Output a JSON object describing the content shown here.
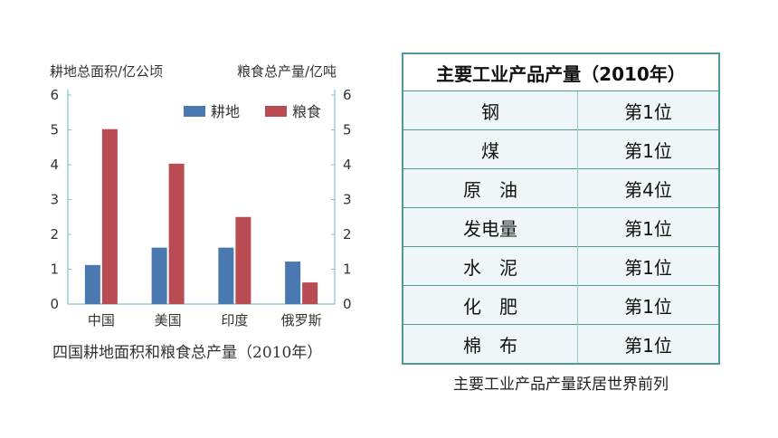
{
  "chart_data": {
    "type": "bar",
    "categories": [
      "中国",
      "美国",
      "印度",
      "俄罗斯"
    ],
    "series": [
      {
        "name": "耕地",
        "values": [
          1.12,
          1.62,
          1.62,
          1.22
        ],
        "color": "#4a78b0"
      },
      {
        "name": "粮食",
        "values": [
          5.02,
          4.03,
          2.5,
          0.62
        ],
        "color": "#b84c52"
      }
    ],
    "left_axis_label": "耕地总面积/亿公顷",
    "right_axis_label": "粮食总产量/亿吨",
    "ylim": [
      0,
      6
    ],
    "y2lim": [
      0,
      6
    ],
    "yticks": [
      "0",
      "1",
      "2",
      "3",
      "4",
      "5",
      "6"
    ],
    "legend_position": "top-right",
    "grid": false,
    "caption": "四国耕地面积和粮食总产量（2010年）",
    "axis_color": "#7fc4cc"
  },
  "table": {
    "title": "主要工业产品产量（2010年）",
    "rows": [
      {
        "name": "钢",
        "rank": "第1位"
      },
      {
        "name": "煤",
        "rank": "第1位"
      },
      {
        "name": "原　油",
        "rank": "第4位"
      },
      {
        "name": "发电量",
        "rank": "第1位"
      },
      {
        "name": "水　泥",
        "rank": "第1位"
      },
      {
        "name": "化　肥",
        "rank": "第1位"
      },
      {
        "name": "棉　布",
        "rank": "第1位"
      }
    ],
    "caption": "主要工业产品产量跃居世界前列",
    "border_color": "#4f9a97",
    "cell_bg": "#eef6f8"
  }
}
